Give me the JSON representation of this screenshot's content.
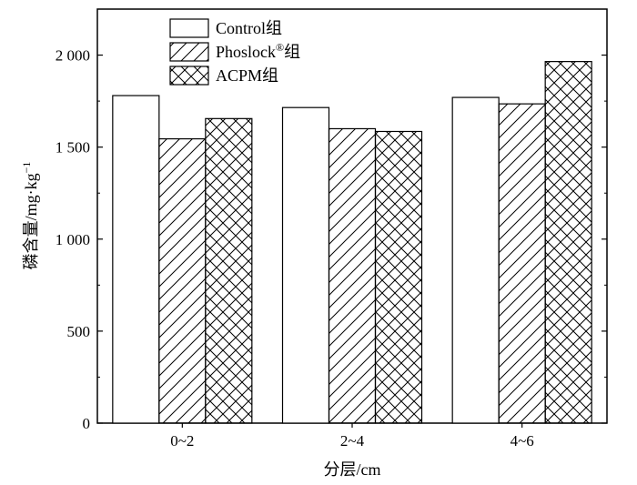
{
  "chart_data": {
    "type": "bar",
    "title": "",
    "xlabel": "分层/cm",
    "ylabel": "磷含量/mg·kg",
    "ylabel_superscript": "−1",
    "categories": [
      "0~2",
      "2~4",
      "4~6"
    ],
    "series": [
      {
        "name": "Control组",
        "name_main": "Control组",
        "pattern": "empty",
        "values": [
          1780,
          1715,
          1770
        ]
      },
      {
        "name": "Phoslock®组",
        "name_main": "Phoslock",
        "name_sup": "®",
        "name_tail": "组",
        "pattern": "diagonal",
        "values": [
          1545,
          1600,
          1735
        ]
      },
      {
        "name": "ACPM组",
        "name_main": "ACPM组",
        "pattern": "crosshatch",
        "values": [
          1655,
          1585,
          1965
        ]
      }
    ],
    "ylim": [
      0,
      2250
    ],
    "yticks": [
      0,
      500,
      1000,
      1500,
      2000
    ],
    "ytick_labels": [
      "0",
      "500",
      "1 000",
      "1 500",
      "2 000"
    ],
    "grid": false,
    "legend_position": "top-left",
    "colors": {
      "edge": "#000000",
      "fill": "#ffffff"
    }
  }
}
